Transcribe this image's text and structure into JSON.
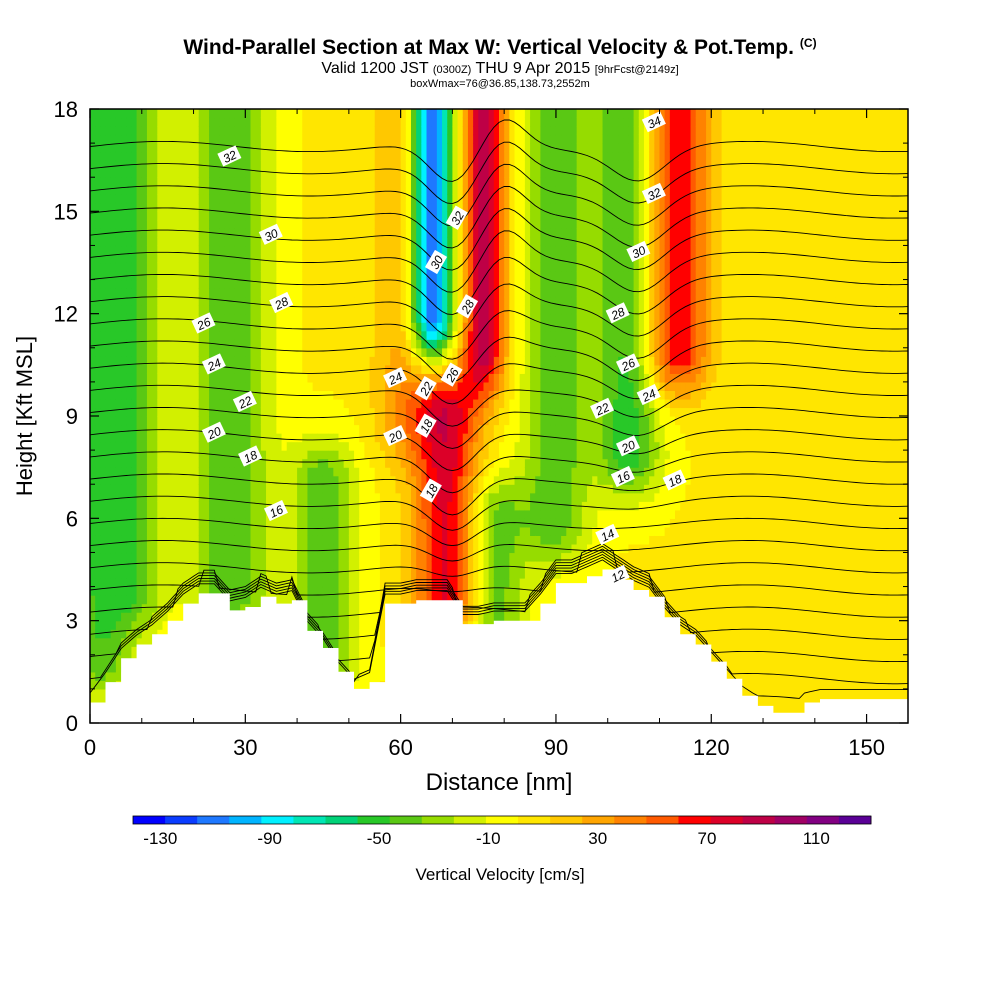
{
  "title": {
    "main": "Wind-Parallel Section at Max W: Vertical Velocity & Pot.Temp.",
    "copyright": "(C)",
    "valid_prefix": "Valid 1200 JST",
    "valid_utc": "(0300Z)",
    "valid_date": "THU 9 Apr 2015",
    "forecast_tag": "[9hrFcst@2149z]",
    "subtitle": "boxWmax=76@36.85,138.73,2552m"
  },
  "colors": {
    "scale": [
      "#0000ff",
      "#0a3cff",
      "#1e78ff",
      "#00b4ff",
      "#00f0ff",
      "#00e6b4",
      "#00d278",
      "#28c828",
      "#5ac814",
      "#96dc00",
      "#d2f000",
      "#ffff00",
      "#ffe600",
      "#ffc800",
      "#ffa500",
      "#ff8200",
      "#ff5a00",
      "#ff0000",
      "#dc0028",
      "#be0046",
      "#a00064",
      "#820082",
      "#5a0096"
    ],
    "terrain": "#ffffff"
  },
  "chart_data": {
    "type": "heatmap",
    "xlabel": "Distance [nm]",
    "ylabel": "Height [Kft MSL]",
    "xlim": [
      0,
      158
    ],
    "ylim": [
      0,
      18
    ],
    "xticks": [
      0,
      30,
      60,
      90,
      120,
      150
    ],
    "yticks": [
      0,
      3,
      6,
      9,
      12,
      15,
      18
    ],
    "colorbar": {
      "label": "Vertical Velocity [cm/s]",
      "ticks": [
        -130,
        -90,
        -50,
        -10,
        30,
        70,
        110
      ],
      "range": [
        -140,
        130
      ]
    },
    "terrain_kft": [
      [
        0,
        0.6
      ],
      [
        3,
        1.2
      ],
      [
        6,
        1.9
      ],
      [
        9,
        2.3
      ],
      [
        12,
        2.6
      ],
      [
        15,
        3.0
      ],
      [
        18,
        3.5
      ],
      [
        21,
        3.8
      ],
      [
        24,
        3.8
      ],
      [
        27,
        3.3
      ],
      [
        30,
        3.4
      ],
      [
        33,
        3.7
      ],
      [
        36,
        3.5
      ],
      [
        39,
        3.6
      ],
      [
        42,
        2.7
      ],
      [
        45,
        2.2
      ],
      [
        48,
        1.5
      ],
      [
        51,
        1.0
      ],
      [
        54,
        1.2
      ],
      [
        57,
        3.5
      ],
      [
        60,
        3.5
      ],
      [
        63,
        3.6
      ],
      [
        66,
        3.6
      ],
      [
        69,
        3.6
      ],
      [
        72,
        2.9
      ],
      [
        75,
        2.9
      ],
      [
        78,
        3.0
      ],
      [
        81,
        3.0
      ],
      [
        84,
        3.0
      ],
      [
        87,
        3.5
      ],
      [
        90,
        4.1
      ],
      [
        93,
        4.1
      ],
      [
        96,
        4.3
      ],
      [
        99,
        4.5
      ],
      [
        102,
        4.2
      ],
      [
        105,
        3.9
      ],
      [
        108,
        3.7
      ],
      [
        111,
        3.1
      ],
      [
        114,
        2.6
      ],
      [
        117,
        2.3
      ],
      [
        120,
        1.8
      ],
      [
        123,
        1.3
      ],
      [
        126,
        0.8
      ],
      [
        129,
        0.5
      ],
      [
        132,
        0.3
      ],
      [
        135,
        0.3
      ],
      [
        138,
        0.6
      ],
      [
        141,
        0.7
      ],
      [
        144,
        0.7
      ],
      [
        147,
        0.7
      ],
      [
        150,
        0.7
      ],
      [
        153,
        0.7
      ],
      [
        156,
        0.7
      ],
      [
        158,
        0.7
      ]
    ],
    "vertical_velocity_features": [
      {
        "x": 2,
        "y_min": 2,
        "y_max": 18,
        "w": -45
      },
      {
        "x": 9,
        "y_min": 4,
        "y_max": 18,
        "w": -35
      },
      {
        "x": 25,
        "y_min": 4,
        "y_max": 18,
        "w": -30
      },
      {
        "x": 30,
        "y_min": 4,
        "y_max": 18,
        "w": -25
      },
      {
        "x": 45,
        "y_min": 2,
        "y_max": 7,
        "w": -45
      },
      {
        "x": 61,
        "y_min": 9,
        "y_max": 18,
        "w": 30
      },
      {
        "x": 66,
        "y_min": 12,
        "y_max": 18,
        "w": -130
      },
      {
        "x": 69,
        "y_min": 3.6,
        "y_max": 9,
        "w": 76
      },
      {
        "x": 76,
        "y_min": 11,
        "y_max": 18,
        "w": 85
      },
      {
        "x": 78,
        "y_min": 3,
        "y_max": 6,
        "w": -45
      },
      {
        "x": 90,
        "y_min": 6,
        "y_max": 18,
        "w": -45
      },
      {
        "x": 104,
        "y_min": 8,
        "y_max": 18,
        "w": -55
      },
      {
        "x": 113,
        "y_min": 11,
        "y_max": 18,
        "w": 75
      },
      {
        "x": 145,
        "y_min": 0.7,
        "y_max": 18,
        "w": 10
      }
    ],
    "theta_contours": {
      "levels": [
        10,
        11,
        12,
        13,
        14,
        15,
        16,
        17,
        18,
        19,
        20,
        21,
        22,
        23,
        24,
        25,
        26,
        27,
        28,
        29,
        30,
        31,
        32,
        33,
        34,
        35
      ],
      "labels": [
        {
          "value": "32",
          "x": 27,
          "y": 16.6
        },
        {
          "value": "30",
          "x": 35,
          "y": 14.3
        },
        {
          "value": "28",
          "x": 37,
          "y": 12.3
        },
        {
          "value": "26",
          "x": 22,
          "y": 11.7
        },
        {
          "value": "24",
          "x": 24,
          "y": 10.5
        },
        {
          "value": "22",
          "x": 30,
          "y": 9.4
        },
        {
          "value": "20",
          "x": 24,
          "y": 8.5
        },
        {
          "value": "18",
          "x": 31,
          "y": 7.8
        },
        {
          "value": "16",
          "x": 36,
          "y": 6.2
        },
        {
          "value": "24",
          "x": 59,
          "y": 10.1
        },
        {
          "value": "22",
          "x": 65,
          "y": 9.8
        },
        {
          "value": "18",
          "x": 65,
          "y": 8.7
        },
        {
          "value": "20",
          "x": 59,
          "y": 8.4
        },
        {
          "value": "18",
          "x": 66,
          "y": 6.8
        },
        {
          "value": "32",
          "x": 71,
          "y": 14.8
        },
        {
          "value": "30",
          "x": 67,
          "y": 13.5
        },
        {
          "value": "28",
          "x": 73,
          "y": 12.2
        },
        {
          "value": "26",
          "x": 70,
          "y": 10.2
        },
        {
          "value": "34",
          "x": 109,
          "y": 17.6
        },
        {
          "value": "32",
          "x": 109,
          "y": 15.5
        },
        {
          "value": "30",
          "x": 106,
          "y": 13.8
        },
        {
          "value": "28",
          "x": 102,
          "y": 12.0
        },
        {
          "value": "26",
          "x": 104,
          "y": 10.5
        },
        {
          "value": "24",
          "x": 108,
          "y": 9.6
        },
        {
          "value": "22",
          "x": 99,
          "y": 9.2
        },
        {
          "value": "20",
          "x": 104,
          "y": 8.1
        },
        {
          "value": "16",
          "x": 103,
          "y": 7.2
        },
        {
          "value": "18",
          "x": 113,
          "y": 7.1
        },
        {
          "value": "14",
          "x": 100,
          "y": 5.5
        },
        {
          "value": "12",
          "x": 102,
          "y": 4.3
        }
      ]
    }
  }
}
